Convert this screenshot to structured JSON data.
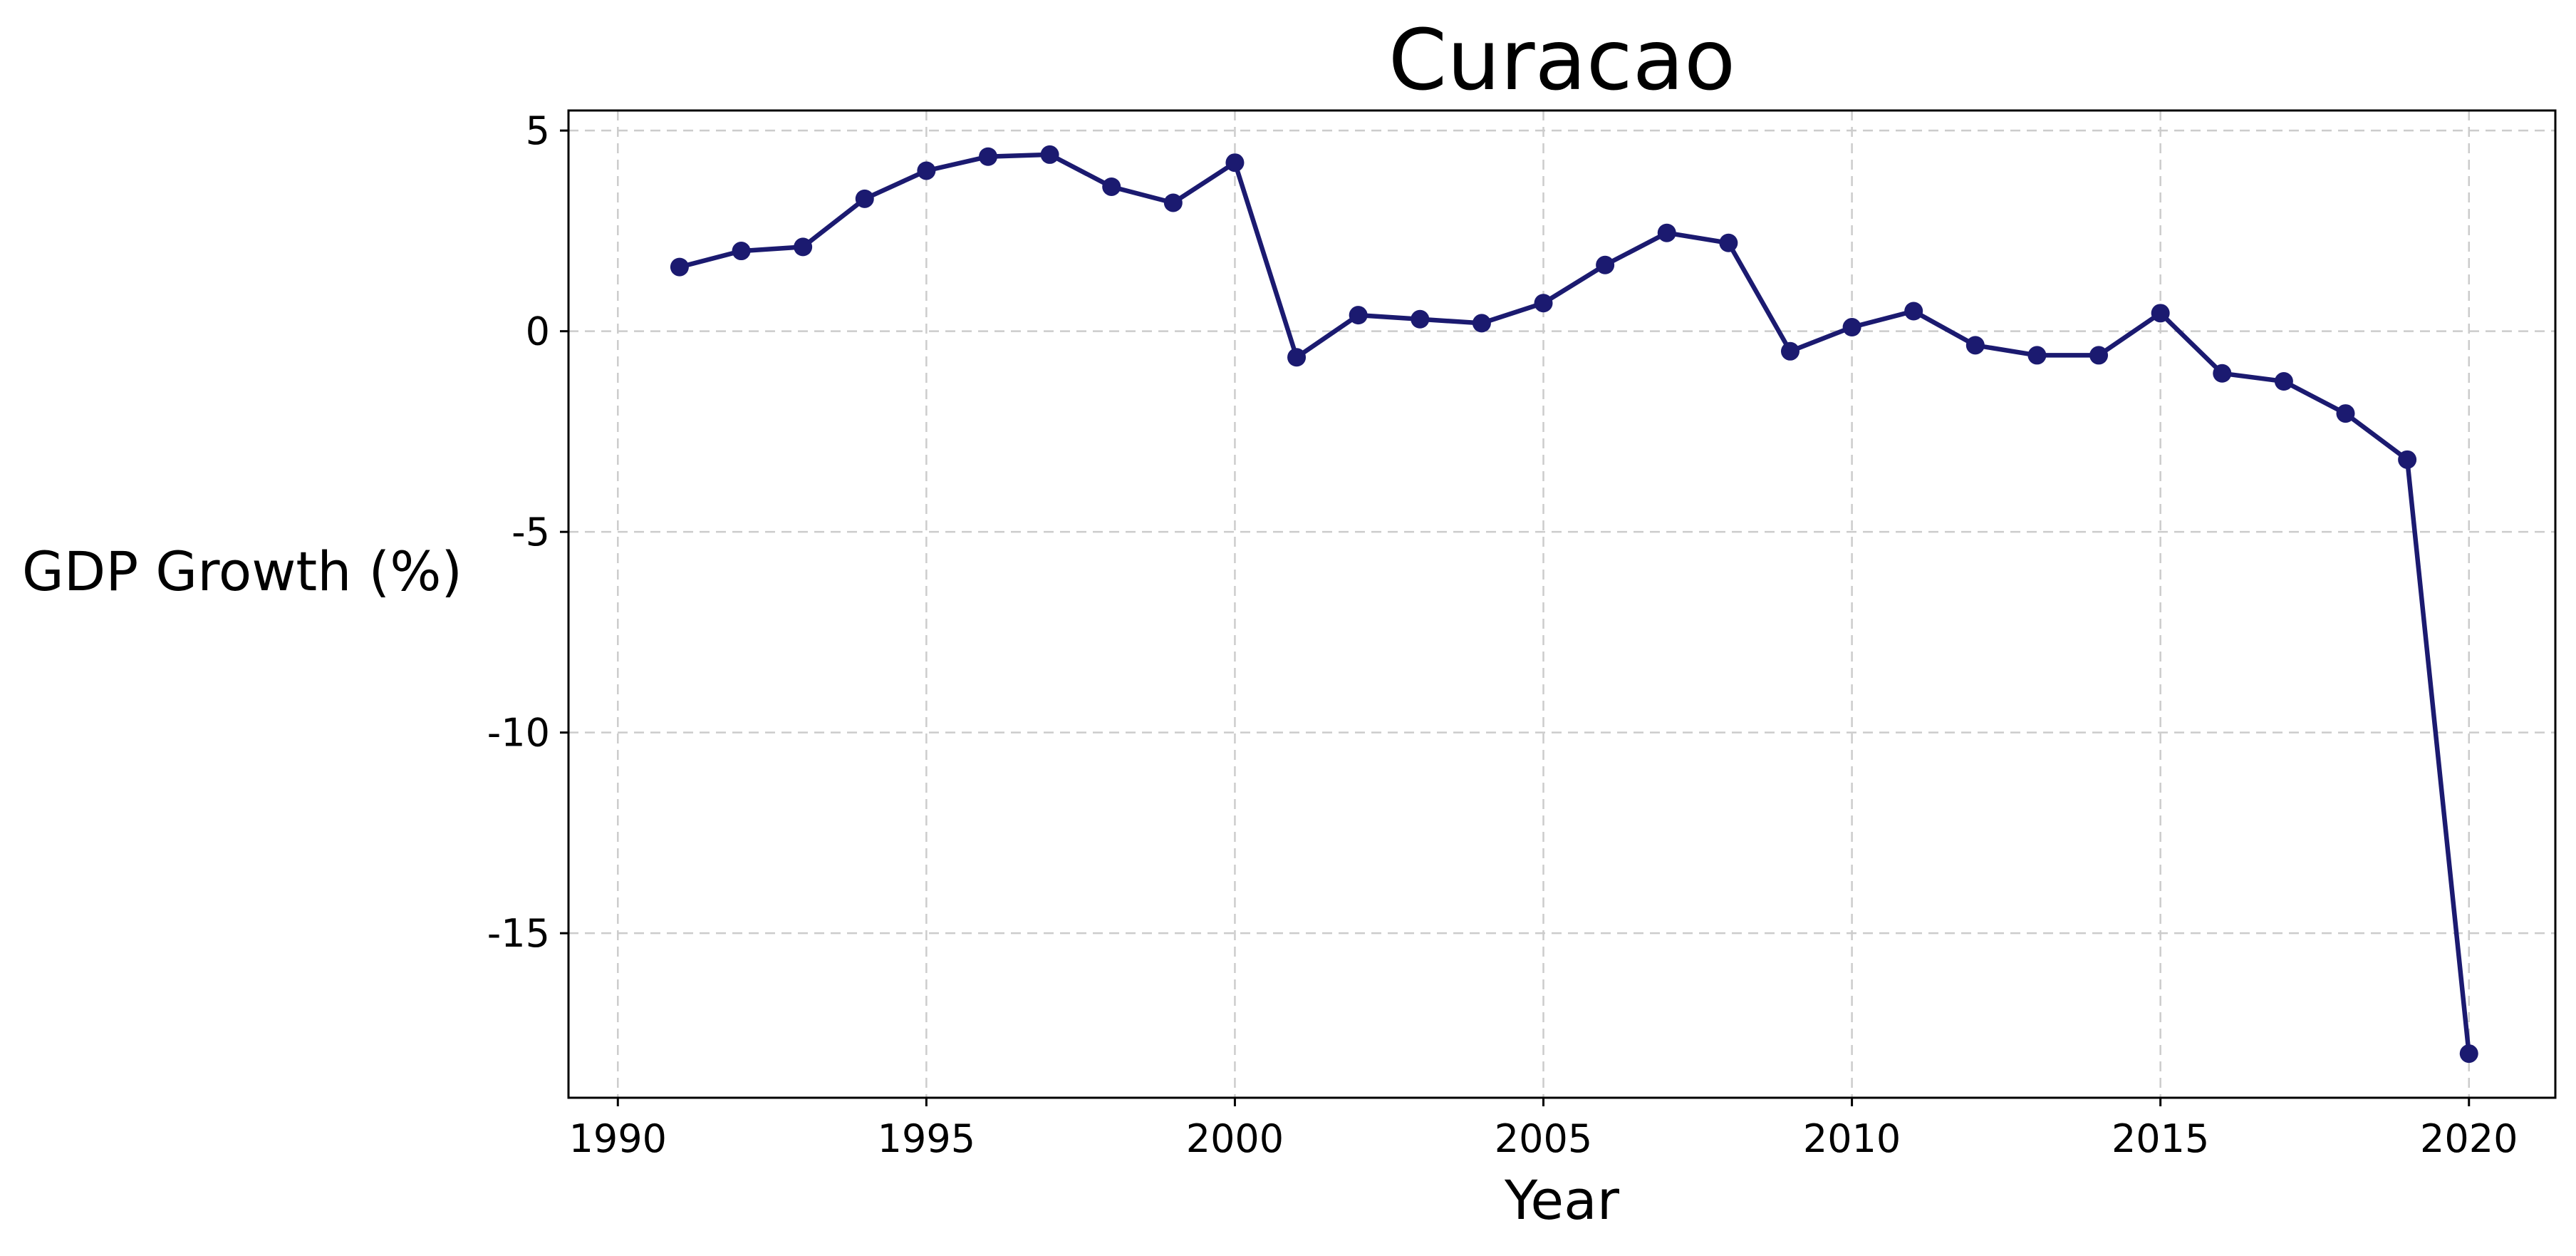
{
  "chart_data": {
    "type": "line",
    "title": "Curacao",
    "xlabel": "Year",
    "ylabel": "GDP Growth (%)",
    "xlim": [
      1989.2,
      2021.4
    ],
    "ylim": [
      -19.1,
      5.5
    ],
    "xticks": [
      1990,
      1995,
      2000,
      2005,
      2010,
      2015,
      2020
    ],
    "yticks": [
      5,
      0,
      -5,
      -10,
      -15
    ],
    "ytick_labels": [
      "5",
      "0",
      "-5",
      "-10",
      "-15"
    ],
    "grid": true,
    "line_color": "#1b1a70",
    "marker": "circle",
    "series": [
      {
        "x": [
          1991,
          1992,
          1993,
          1994,
          1995,
          1996,
          1997,
          1998,
          1999,
          2000,
          2001,
          2002,
          2003,
          2004,
          2005,
          2006,
          2007,
          2008,
          2009,
          2010,
          2011,
          2012,
          2013,
          2014,
          2015,
          2016,
          2017,
          2018,
          2019,
          2020
        ],
        "y": [
          1.6,
          2.0,
          2.1,
          3.3,
          4.0,
          4.35,
          4.4,
          3.6,
          3.2,
          4.2,
          -0.65,
          0.4,
          0.3,
          0.2,
          0.7,
          1.65,
          2.45,
          2.2,
          -0.5,
          0.1,
          0.5,
          -0.35,
          -0.6,
          -0.6,
          0.45,
          -1.05,
          -1.25,
          -2.05,
          -3.2,
          -18.0
        ]
      }
    ]
  }
}
